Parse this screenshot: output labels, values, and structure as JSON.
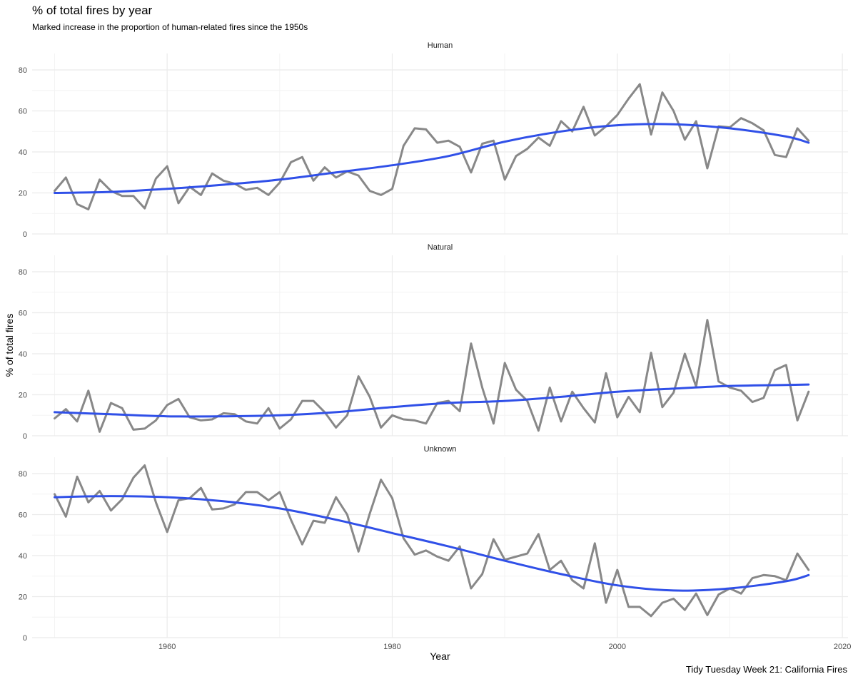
{
  "title": "% of total fires by year",
  "subtitle": "Marked increase in the proportion of human-related fires since the 1950s",
  "caption": "Tidy Tuesday Week 21: California Fires",
  "chart_data": {
    "type": "line",
    "xlabel": "Year",
    "ylabel": "% of total fires",
    "xlim": [
      1948,
      2020.5
    ],
    "ylim": [
      0,
      88
    ],
    "x_ticks": [
      1960,
      1980,
      2000,
      2020
    ],
    "y_ticks": [
      0,
      20,
      40,
      60,
      80
    ],
    "grid": true,
    "colors": {
      "raw": "#888888",
      "smooth": "#3050e8",
      "grid": "#ebebeb"
    },
    "x": [
      1950,
      1951,
      1952,
      1953,
      1954,
      1955,
      1956,
      1957,
      1958,
      1959,
      1960,
      1961,
      1962,
      1963,
      1964,
      1965,
      1966,
      1967,
      1968,
      1969,
      1970,
      1971,
      1972,
      1973,
      1974,
      1975,
      1976,
      1977,
      1978,
      1979,
      1980,
      1981,
      1982,
      1983,
      1984,
      1985,
      1986,
      1987,
      1988,
      1989,
      1990,
      1991,
      1992,
      1993,
      1994,
      1995,
      1996,
      1997,
      1998,
      1999,
      2000,
      2001,
      2002,
      2003,
      2004,
      2005,
      2006,
      2007,
      2008,
      2009,
      2010,
      2011,
      2012,
      2013,
      2014,
      2015,
      2016,
      2017
    ],
    "smooth_x": [
      1950,
      1955,
      1960,
      1965,
      1970,
      1975,
      1980,
      1985,
      1990,
      1995,
      2000,
      2005,
      2010,
      2015,
      2017
    ],
    "panels": [
      {
        "label": "Human",
        "values": [
          21,
          27.5,
          14.5,
          12,
          26.5,
          21,
          18.5,
          18.5,
          12.5,
          27,
          33,
          15,
          23,
          19,
          29.5,
          26,
          24.5,
          21.5,
          22.5,
          19,
          25,
          35,
          37.5,
          26,
          32.5,
          27.5,
          30.5,
          28.5,
          21,
          19,
          22,
          43,
          51.5,
          51,
          44.5,
          45.5,
          42.5,
          30,
          44,
          45.5,
          26.5,
          38,
          41.5,
          47,
          43,
          55,
          50,
          62,
          48,
          52.5,
          58,
          66,
          73,
          48.5,
          69,
          60,
          46,
          55,
          32,
          52.5,
          52,
          56.5,
          54,
          50.5,
          38.5,
          37.5,
          51.5,
          45.5
        ],
        "smooth": [
          20,
          20.5,
          22,
          24,
          26.5,
          30,
          33.5,
          38,
          45,
          50,
          53,
          53.5,
          51.5,
          47.5,
          44.5
        ]
      },
      {
        "label": "Natural",
        "values": [
          8.5,
          13,
          7,
          22,
          2,
          16,
          13.5,
          3,
          3.5,
          7.5,
          15,
          18,
          9,
          7.5,
          8,
          11,
          10.5,
          7,
          6,
          13.5,
          3.5,
          8,
          17,
          17,
          11.5,
          4,
          10,
          29,
          19,
          4,
          10,
          8,
          7.5,
          6,
          16,
          17,
          12,
          45,
          23.5,
          6,
          35.5,
          22.5,
          17,
          2.5,
          23.5,
          7,
          21.5,
          13.5,
          6.5,
          30.5,
          9,
          19,
          11.5,
          40.5,
          14,
          21,
          40,
          24,
          56.5,
          26.5,
          23.5,
          22,
          16.5,
          18.5,
          32,
          34.5,
          7.5,
          21.5
        ],
        "smooth": [
          11.5,
          10.5,
          9.5,
          9.5,
          10,
          11.5,
          14,
          16,
          17,
          19,
          21.5,
          23,
          24.3,
          24.8,
          25
        ]
      },
      {
        "label": "Unknown",
        "values": [
          70,
          59,
          78.5,
          66,
          71.5,
          62,
          67.5,
          78,
          84,
          66,
          51.5,
          67,
          68,
          73,
          62.5,
          63,
          65,
          71,
          71,
          67,
          71,
          57.5,
          45.5,
          57,
          56,
          68.5,
          60,
          42,
          60.5,
          77,
          68,
          48.5,
          40.5,
          42.5,
          39.5,
          37.5,
          44.5,
          24,
          31,
          48,
          38,
          39.5,
          41,
          50.5,
          33,
          37.5,
          28,
          24,
          46,
          17,
          33,
          15,
          15,
          10.5,
          17,
          19,
          13.5,
          21.5,
          11,
          21,
          24,
          21.5,
          29,
          30.5,
          30,
          28,
          41,
          33
        ],
        "smooth": [
          68.5,
          69,
          68.5,
          66.5,
          63,
          57.5,
          51,
          44.5,
          37.5,
          31,
          25.5,
          23,
          24,
          27.5,
          30.5
        ]
      }
    ]
  }
}
